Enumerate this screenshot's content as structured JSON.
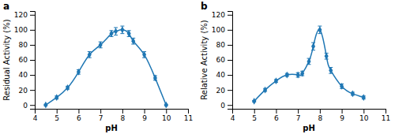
{
  "chart_data": [
    {
      "type": "line",
      "title": "a",
      "xlabel": "pH",
      "ylabel": "Residual Activity (%)",
      "xlim": [
        4,
        11
      ],
      "ylim": [
        -5,
        125
      ],
      "xticks": [
        4,
        5,
        6,
        7,
        8,
        9,
        10,
        11
      ],
      "yticks": [
        0,
        20,
        40,
        60,
        80,
        100,
        120
      ],
      "x": [
        4.5,
        5.0,
        5.5,
        6.0,
        6.5,
        7.0,
        7.5,
        7.7,
        8.0,
        8.3,
        8.5,
        9.0,
        9.5,
        10.0
      ],
      "values": [
        0,
        10,
        23,
        44,
        67,
        80,
        95,
        98,
        100,
        95,
        85,
        67,
        36,
        0
      ],
      "errors": [
        1,
        2,
        2,
        3,
        4,
        4,
        4,
        5,
        5,
        4,
        4,
        4,
        3,
        1
      ],
      "marker": "diamond"
    },
    {
      "type": "line",
      "title": "b",
      "xlabel": "pH",
      "ylabel": "Relative Activity (%)",
      "xlim": [
        4,
        11
      ],
      "ylim": [
        -5,
        125
      ],
      "xticks": [
        4,
        5,
        6,
        7,
        8,
        9,
        10,
        11
      ],
      "yticks": [
        0,
        20,
        40,
        60,
        80,
        100,
        120
      ],
      "x": [
        5.0,
        5.5,
        6.0,
        6.5,
        7.0,
        7.2,
        7.5,
        7.7,
        8.0,
        8.3,
        8.5,
        9.0,
        9.5,
        10.0
      ],
      "values": [
        5,
        20,
        32,
        40,
        40,
        42,
        58,
        78,
        100,
        65,
        46,
        25,
        15,
        10
      ],
      "errors": [
        1,
        2,
        2,
        2,
        3,
        3,
        4,
        5,
        5,
        4,
        4,
        3,
        2,
        2
      ],
      "marker": "diamond"
    }
  ]
}
